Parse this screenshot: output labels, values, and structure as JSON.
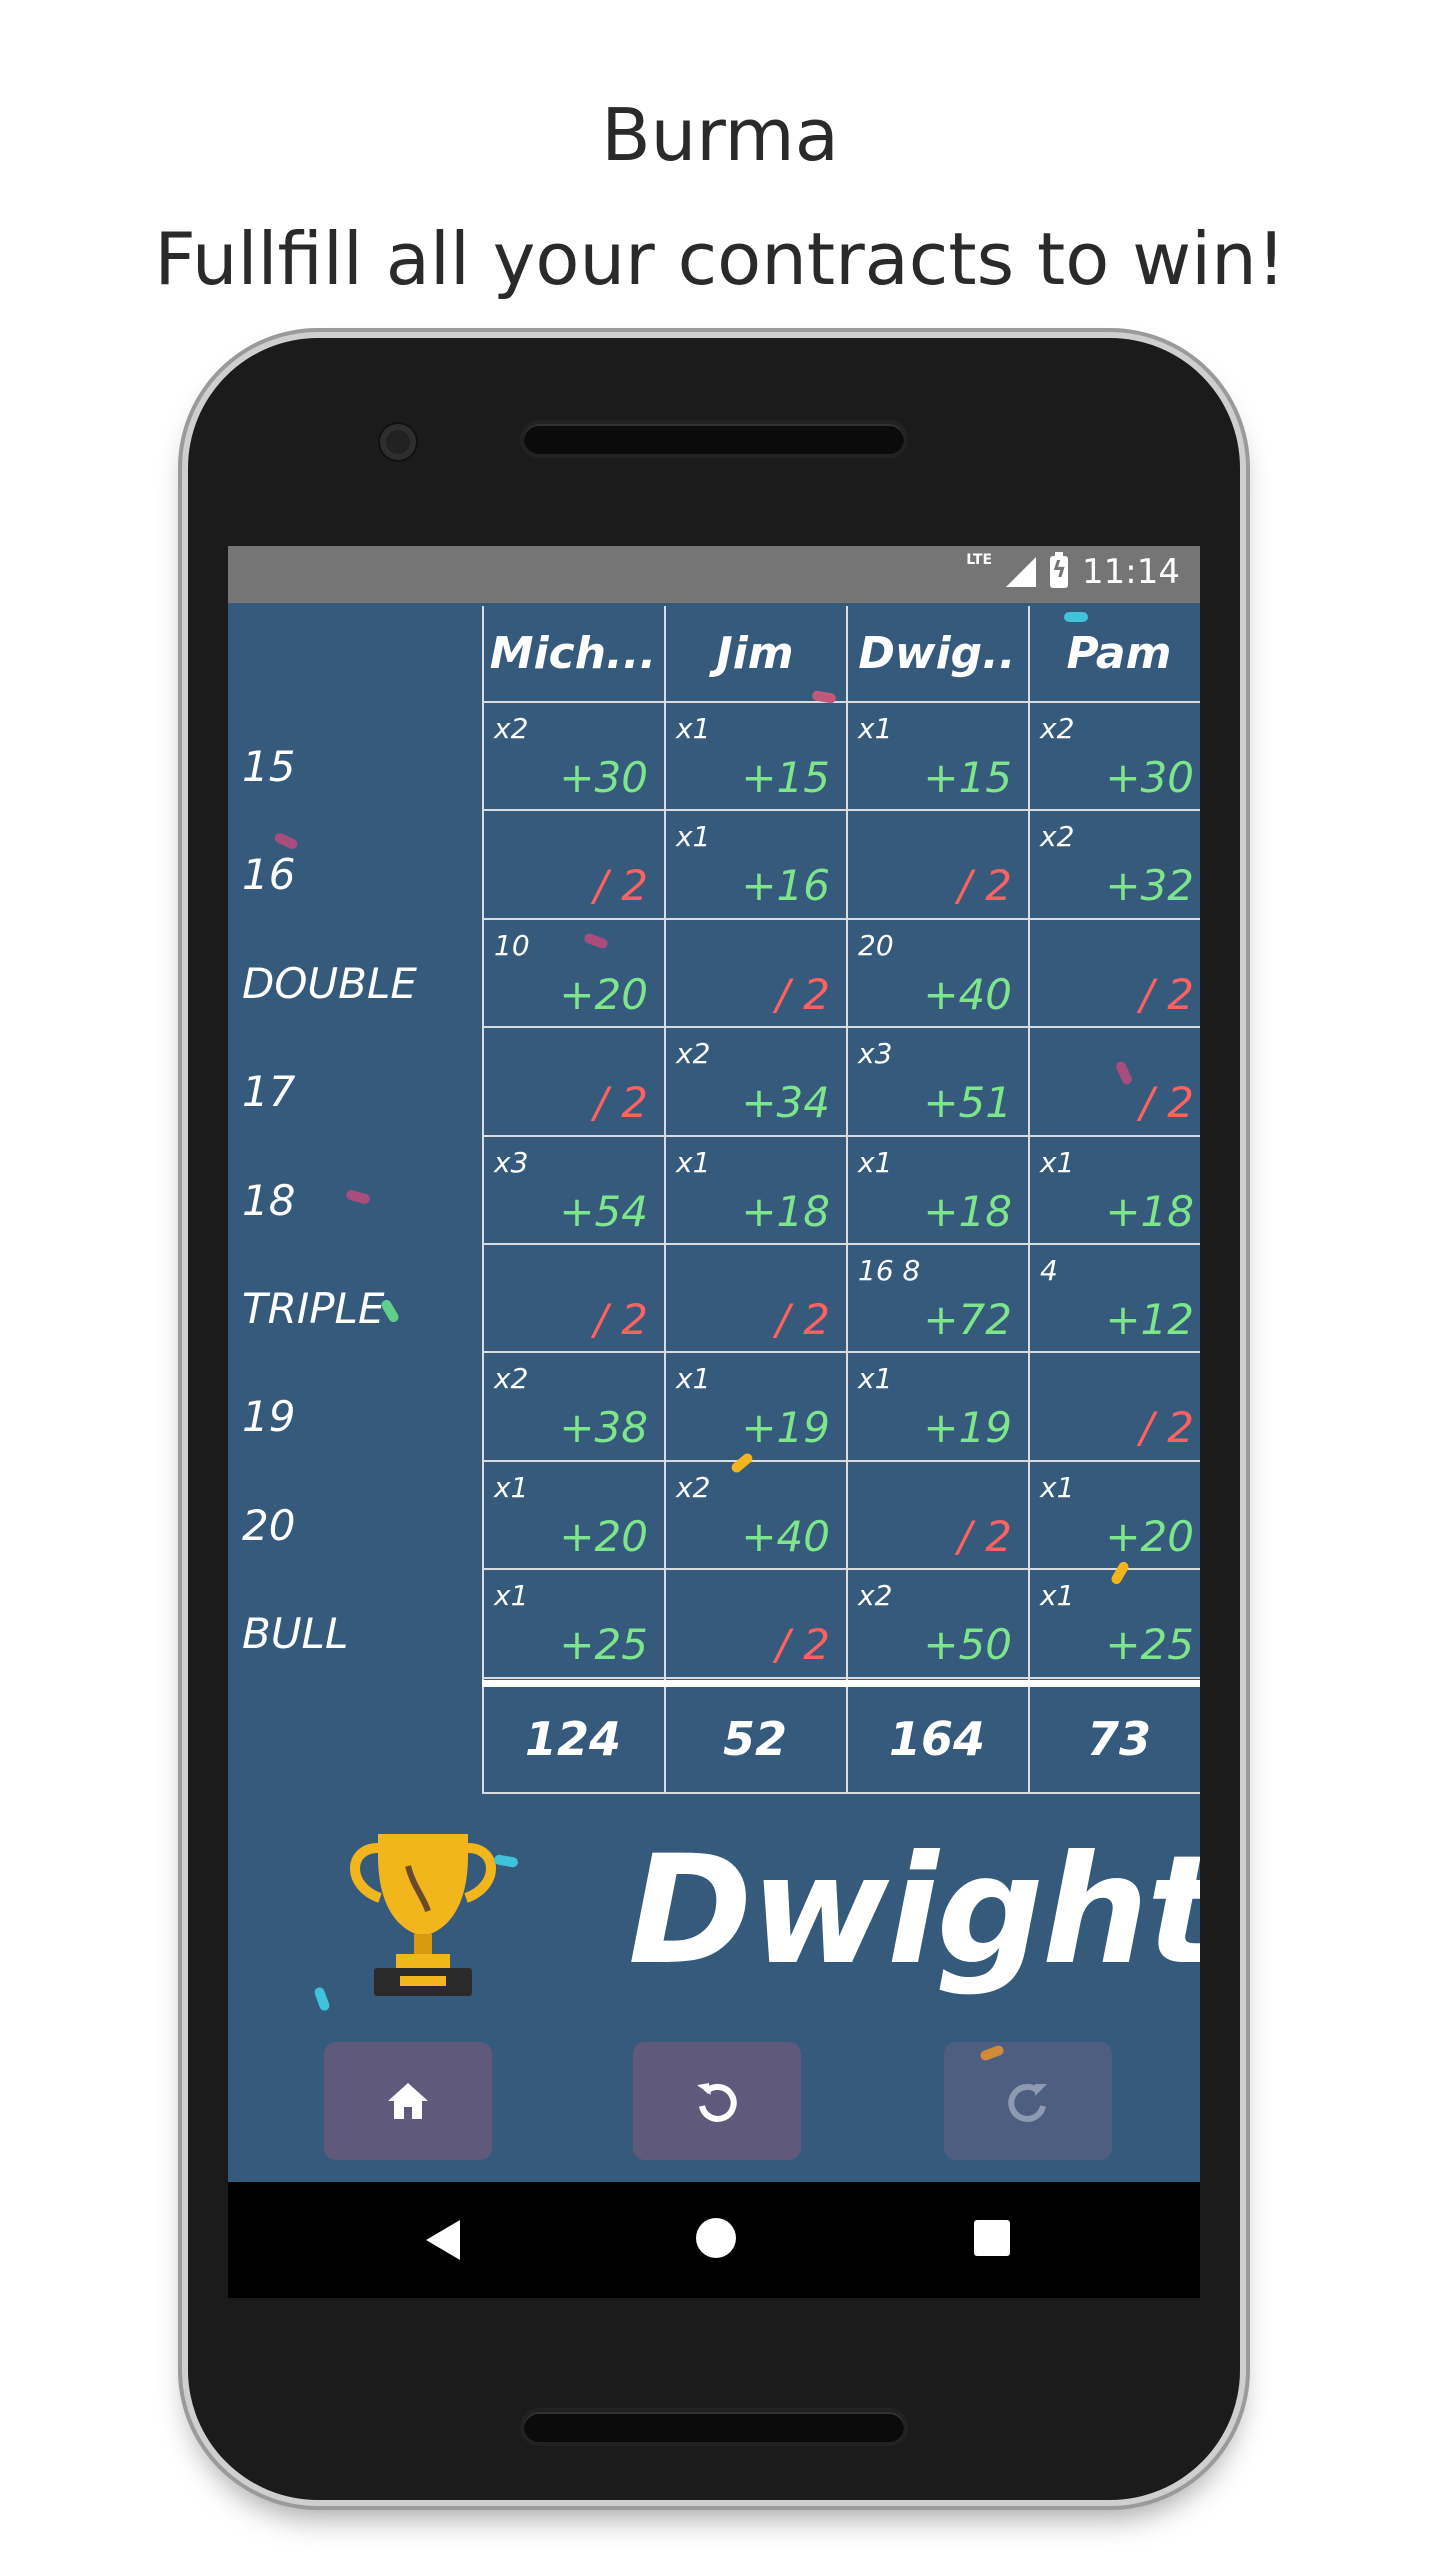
{
  "promo": {
    "title": "Burma",
    "subtitle": "Fullfill all your contracts to win!"
  },
  "status_bar": {
    "network": "LTE",
    "time": "11:14"
  },
  "players": [
    "Mich...",
    "Jim",
    "Dwig..",
    "Pam"
  ],
  "rows": [
    {
      "label": "15",
      "cells": [
        {
          "mult": "x2",
          "value": "+30",
          "kind": "pos"
        },
        {
          "mult": "x1",
          "value": "+15",
          "kind": "pos"
        },
        {
          "mult": "x1",
          "value": "+15",
          "kind": "pos"
        },
        {
          "mult": "x2",
          "value": "+30",
          "kind": "pos"
        }
      ]
    },
    {
      "label": "16",
      "cells": [
        {
          "mult": "",
          "value": "/ 2",
          "kind": "neg"
        },
        {
          "mult": "x1",
          "value": "+16",
          "kind": "pos"
        },
        {
          "mult": "",
          "value": "/ 2",
          "kind": "neg"
        },
        {
          "mult": "x2",
          "value": "+32",
          "kind": "pos"
        }
      ]
    },
    {
      "label": "DOUBLE",
      "cells": [
        {
          "mult": "10",
          "value": "+20",
          "kind": "pos"
        },
        {
          "mult": "",
          "value": "/ 2",
          "kind": "neg"
        },
        {
          "mult": "20",
          "value": "+40",
          "kind": "pos"
        },
        {
          "mult": "",
          "value": "/ 2",
          "kind": "neg"
        }
      ]
    },
    {
      "label": "17",
      "cells": [
        {
          "mult": "",
          "value": "/ 2",
          "kind": "neg"
        },
        {
          "mult": "x2",
          "value": "+34",
          "kind": "pos"
        },
        {
          "mult": "x3",
          "value": "+51",
          "kind": "pos"
        },
        {
          "mult": "",
          "value": "/ 2",
          "kind": "neg"
        }
      ]
    },
    {
      "label": "18",
      "cells": [
        {
          "mult": "x3",
          "value": "+54",
          "kind": "pos"
        },
        {
          "mult": "x1",
          "value": "+18",
          "kind": "pos"
        },
        {
          "mult": "x1",
          "value": "+18",
          "kind": "pos"
        },
        {
          "mult": "x1",
          "value": "+18",
          "kind": "pos"
        }
      ]
    },
    {
      "label": "TRIPLE",
      "cells": [
        {
          "mult": "",
          "value": "/ 2",
          "kind": "neg"
        },
        {
          "mult": "",
          "value": "/ 2",
          "kind": "neg"
        },
        {
          "mult": "16  8",
          "value": "+72",
          "kind": "pos"
        },
        {
          "mult": "4",
          "value": "+12",
          "kind": "pos"
        }
      ]
    },
    {
      "label": "19",
      "cells": [
        {
          "mult": "x2",
          "value": "+38",
          "kind": "pos"
        },
        {
          "mult": "x1",
          "value": "+19",
          "kind": "pos"
        },
        {
          "mult": "x1",
          "value": "+19",
          "kind": "pos"
        },
        {
          "mult": "",
          "value": "/ 2",
          "kind": "neg"
        }
      ]
    },
    {
      "label": "20",
      "cells": [
        {
          "mult": "x1",
          "value": "+20",
          "kind": "pos"
        },
        {
          "mult": "x2",
          "value": "+40",
          "kind": "pos"
        },
        {
          "mult": "",
          "value": "/ 2",
          "kind": "neg"
        },
        {
          "mult": "x1",
          "value": "+20",
          "kind": "pos"
        }
      ]
    },
    {
      "label": "BULL",
      "cells": [
        {
          "mult": "x1",
          "value": "+25",
          "kind": "pos"
        },
        {
          "mult": "",
          "value": "/ 2",
          "kind": "neg"
        },
        {
          "mult": "x2",
          "value": "+50",
          "kind": "pos"
        },
        {
          "mult": "x1",
          "value": "+25",
          "kind": "pos"
        }
      ]
    }
  ],
  "totals": [
    "124",
    "52",
    "164",
    "73"
  ],
  "winner": {
    "name": "Dwight",
    "icon": "trophy-icon"
  },
  "actions": [
    {
      "name": "home-button",
      "icon": "home-icon",
      "enabled": true
    },
    {
      "name": "undo-button",
      "icon": "undo-icon",
      "enabled": true
    },
    {
      "name": "redo-button",
      "icon": "redo-icon",
      "enabled": false
    }
  ],
  "colors": {
    "screen_bg": "#355a7c",
    "positive": "#7ee58b",
    "negative": "#ff6161",
    "button": "#5f5a7c",
    "trophy": "#f2b51c"
  }
}
